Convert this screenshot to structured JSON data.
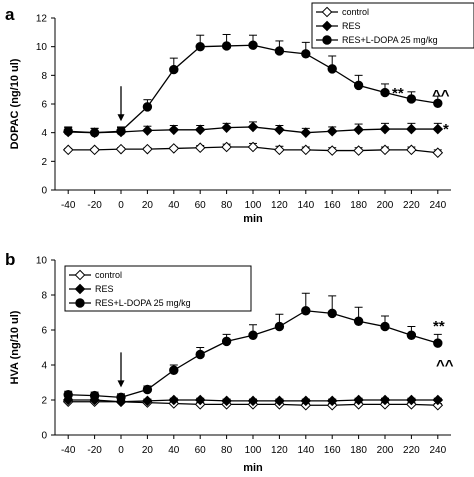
{
  "chart_data": [
    {
      "panel_label": "a",
      "type": "line",
      "xlabel": "min",
      "ylabel": "DOPAC (ng/10 ul)",
      "x": [
        -40,
        -20,
        0,
        20,
        40,
        60,
        80,
        100,
        120,
        140,
        160,
        180,
        200,
        220,
        240
      ],
      "xlim": [
        -50,
        250
      ],
      "ylim": [
        0,
        12
      ],
      "yticks": [
        0,
        2,
        4,
        6,
        8,
        10,
        12
      ],
      "grid": false,
      "legend_position": "top-right",
      "series": [
        {
          "name": "control",
          "marker": "open-diamond",
          "values": [
            2.8,
            2.8,
            2.85,
            2.85,
            2.9,
            2.95,
            3.0,
            3.0,
            2.8,
            2.8,
            2.75,
            2.75,
            2.8,
            2.8,
            2.6
          ],
          "errors": [
            0.1,
            0.1,
            0.1,
            0.1,
            0.1,
            0.15,
            0.2,
            0.25,
            0.25,
            0.2,
            0.2,
            0.2,
            0.2,
            0.2,
            0.2
          ]
        },
        {
          "name": "RES",
          "marker": "filled-diamond",
          "values": [
            4.05,
            4.0,
            4.05,
            4.15,
            4.2,
            4.2,
            4.35,
            4.4,
            4.2,
            4.0,
            4.1,
            4.2,
            4.25,
            4.25,
            4.25
          ],
          "errors": [
            0.3,
            0.3,
            0.3,
            0.3,
            0.3,
            0.3,
            0.3,
            0.35,
            0.3,
            0.3,
            0.3,
            0.4,
            0.4,
            0.4,
            0.4
          ]
        },
        {
          "name": "RES+L-DOPA 25 mg/kg",
          "marker": "filled-circle",
          "values": [
            4.1,
            4.0,
            4.1,
            5.8,
            8.4,
            10.0,
            10.05,
            10.1,
            9.7,
            9.5,
            8.45,
            7.3,
            6.8,
            6.35,
            6.05
          ],
          "errors": [
            0.3,
            0.3,
            0.3,
            0.5,
            0.8,
            0.8,
            0.8,
            0.7,
            0.7,
            0.8,
            0.9,
            0.7,
            0.6,
            0.5,
            0.5
          ]
        }
      ],
      "arrow_at_x": 0,
      "annotations": [
        "**",
        "^^",
        "*"
      ]
    },
    {
      "panel_label": "b",
      "type": "line",
      "xlabel": "min",
      "ylabel": "HVA (ng/10 ul)",
      "x": [
        -40,
        -20,
        0,
        20,
        40,
        60,
        80,
        100,
        120,
        140,
        160,
        180,
        200,
        220,
        240
      ],
      "xlim": [
        -50,
        250
      ],
      "ylim": [
        0,
        10
      ],
      "yticks": [
        0,
        2,
        4,
        6,
        8,
        10
      ],
      "grid": false,
      "legend_position": "top-left",
      "series": [
        {
          "name": "control",
          "marker": "open-diamond",
          "values": [
            1.9,
            1.9,
            1.9,
            1.85,
            1.8,
            1.75,
            1.75,
            1.75,
            1.75,
            1.7,
            1.7,
            1.75,
            1.75,
            1.75,
            1.7
          ],
          "errors": [
            0.1,
            0.1,
            0.1,
            0.1,
            0.1,
            0.1,
            0.1,
            0.1,
            0.1,
            0.1,
            0.1,
            0.1,
            0.1,
            0.1,
            0.1
          ]
        },
        {
          "name": "RES",
          "marker": "filled-diamond",
          "values": [
            2.0,
            2.0,
            1.9,
            1.95,
            2.0,
            2.0,
            1.95,
            1.95,
            1.95,
            1.95,
            1.95,
            2.0,
            2.0,
            2.0,
            2.0
          ],
          "errors": [
            0.1,
            0.1,
            0.1,
            0.1,
            0.1,
            0.1,
            0.1,
            0.1,
            0.1,
            0.1,
            0.1,
            0.1,
            0.1,
            0.1,
            0.1
          ]
        },
        {
          "name": "RES+L-DOPA 25 mg/kg",
          "marker": "filled-circle",
          "values": [
            2.3,
            2.25,
            2.15,
            2.6,
            3.7,
            4.6,
            5.35,
            5.7,
            6.2,
            7.1,
            6.95,
            6.5,
            6.2,
            5.7,
            5.25
          ],
          "errors": [
            0.2,
            0.2,
            0.2,
            0.2,
            0.3,
            0.4,
            0.4,
            0.6,
            0.7,
            1.0,
            1.0,
            0.8,
            0.6,
            0.5,
            0.5
          ]
        }
      ],
      "arrow_at_x": 0,
      "annotations": [
        "**",
        "^^"
      ]
    }
  ]
}
